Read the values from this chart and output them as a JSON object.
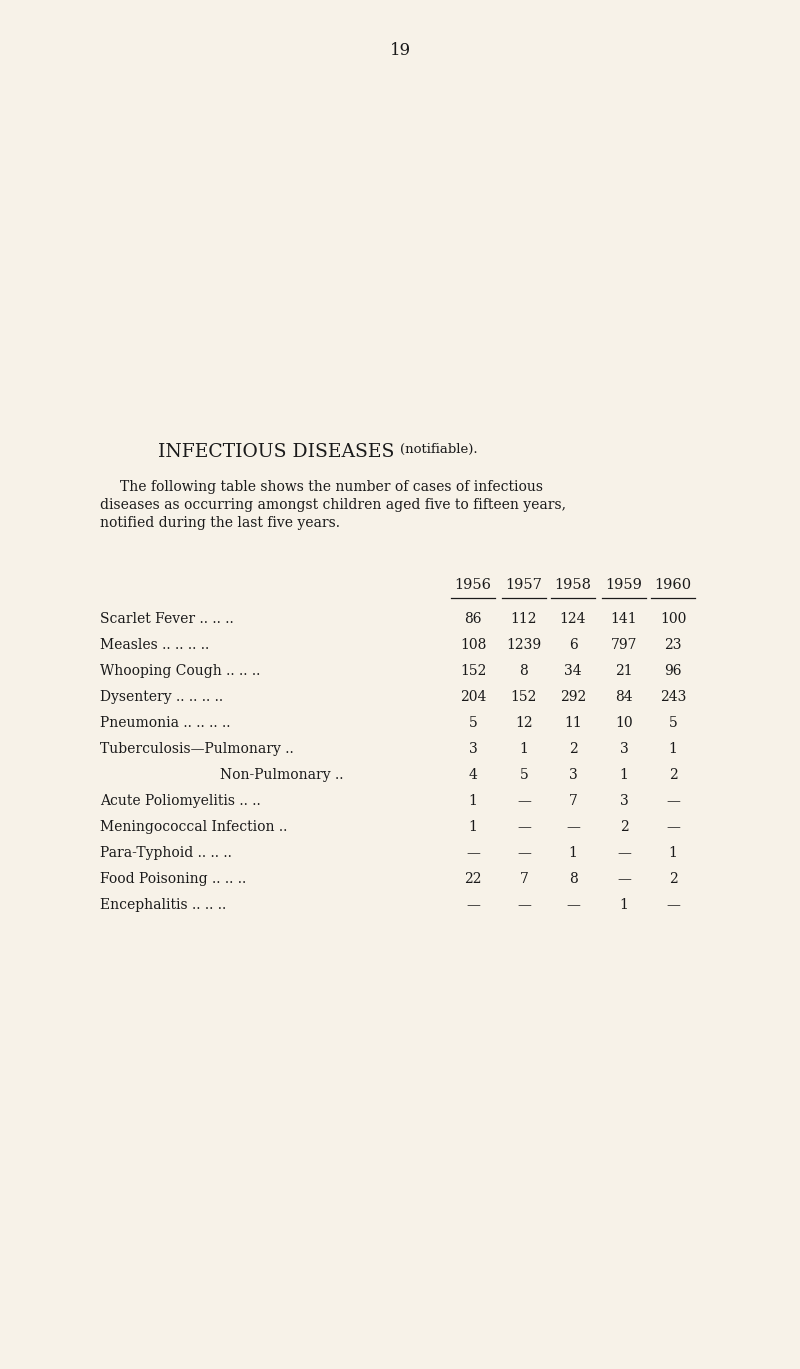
{
  "page_number": "19",
  "background_color": "#f7f2e8",
  "text_color": "#1a1a1a",
  "title_main": "INFECTIOUS DISEASES ",
  "title_small": "(notifiable).",
  "intro_line1": "The following table shows the number of cases of infectious",
  "intro_line2": "diseases as occurring amongst children aged five to fifteen years,",
  "intro_line3": "notified during the last five years.",
  "years": [
    "1956",
    "1957",
    "1958",
    "1959",
    "1960"
  ],
  "rows": [
    {
      "label": "Scarlet Fever",
      "dots": " .. .. ..",
      "indent": false,
      "values": [
        "86",
        "112",
        "124",
        "141",
        "100"
      ]
    },
    {
      "label": "Measles",
      "dots": " .. .. .. ..",
      "indent": false,
      "values": [
        "108",
        "1239",
        "6",
        "797",
        "23"
      ]
    },
    {
      "label": "Whooping Cough ..",
      "dots": " .. ..",
      "indent": false,
      "values": [
        "152",
        "8",
        "34",
        "21",
        "96"
      ]
    },
    {
      "label": "Dysentery ..",
      "dots": " .. .. ..",
      "indent": false,
      "values": [
        "204",
        "152",
        "292",
        "84",
        "243"
      ]
    },
    {
      "label": "Pneumonia ..",
      "dots": " .. .. ..",
      "indent": false,
      "values": [
        "5",
        "12",
        "11",
        "10",
        "5"
      ]
    },
    {
      "label": "Tuberculosis—Pulmonary",
      "dots": " ..",
      "indent": false,
      "values": [
        "3",
        "1",
        "2",
        "3",
        "1"
      ]
    },
    {
      "label": "Non-Pulmonary ..",
      "dots": "",
      "indent": true,
      "values": [
        "4",
        "5",
        "3",
        "1",
        "2"
      ]
    },
    {
      "label": "Acute Poliomyelitis",
      "dots": " .. ..",
      "indent": false,
      "values": [
        "1",
        "—",
        "7",
        "3",
        "—"
      ]
    },
    {
      "label": "Meningococcal Infection",
      "dots": " ..",
      "indent": false,
      "values": [
        "1",
        "—",
        "—",
        "2",
        "—"
      ]
    },
    {
      "label": "Para-Typhoid",
      "dots": " .. .. ..",
      "indent": false,
      "values": [
        "—",
        "—",
        "1",
        "—",
        "1"
      ]
    },
    {
      "label": "Food Poisoning",
      "dots": " .. .. ..",
      "indent": false,
      "values": [
        "22",
        "7",
        "8",
        "—",
        "2"
      ]
    },
    {
      "label": "Encephalitis",
      "dots": " .. .. ..",
      "indent": false,
      "values": [
        "—",
        "—",
        "—",
        "1",
        "—"
      ]
    }
  ]
}
